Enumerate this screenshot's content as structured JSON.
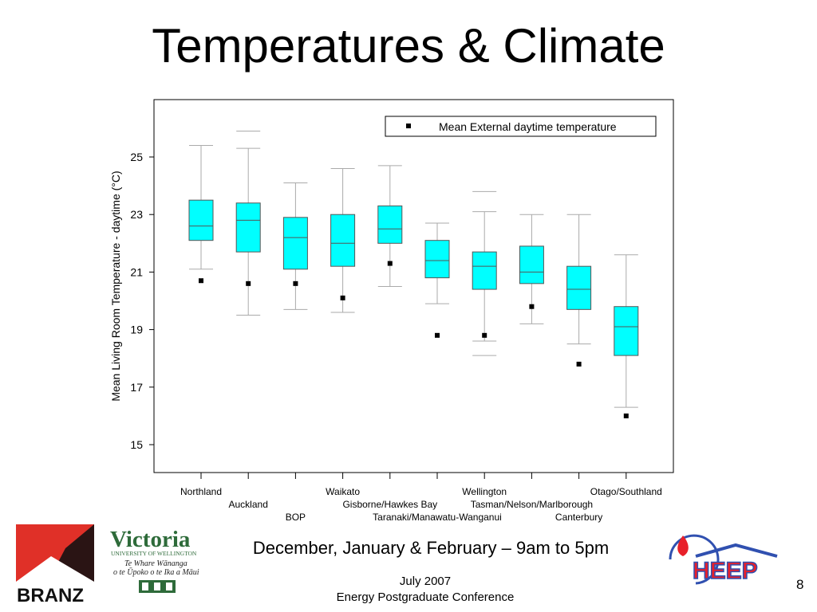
{
  "slide": {
    "title": "Temperatures & Climate",
    "subtitle": "December, January & February – 9am to 5pm",
    "footer_date": "July 2007",
    "footer_event": "Energy Postgraduate Conference",
    "page_number": "8"
  },
  "logos": {
    "branz": "BRANZ",
    "victoria_name": "Victoria",
    "victoria_sub": "UNIVERSITY OF WELLINGTON",
    "victoria_maori_1": "Te Whare Wānanga",
    "victoria_maori_2": "o te Ūpoko o te Ika a Māui",
    "heep": "HEEP"
  },
  "colors": {
    "box_fill": "#00FFFF",
    "box_stroke": "#555555",
    "whisker": "#aaaaaa",
    "marker": "#000000",
    "branz_red": "#e03028",
    "victoria_green": "#2e6b3a",
    "heep_red": "#e8202a",
    "heep_blue": "#3050b0"
  },
  "chart_data": {
    "type": "boxplot",
    "ylabel": "Mean Living Room Temperature - daytime (°C)",
    "ylim": [
      14,
      27
    ],
    "yticks": [
      15,
      17,
      19,
      21,
      23,
      25
    ],
    "legend": {
      "label": "Mean External daytime temperature",
      "position": "top-right"
    },
    "categories": [
      "Northland",
      "Auckland",
      "BOP",
      "Waikato",
      "Gisborne/Hawkes Bay",
      "Taranaki/Manawatu-Wanganui",
      "Wellington",
      "Tasman/Nelson/Marlborough",
      "Canterbury",
      "Otago/Southland"
    ],
    "boxes": [
      {
        "whisker_low": 21.1,
        "q1": 22.1,
        "median": 22.6,
        "q3": 23.5,
        "whisker_high": 25.4,
        "outliers": []
      },
      {
        "whisker_low": 19.5,
        "q1": 21.7,
        "median": 22.8,
        "q3": 23.4,
        "whisker_high": 25.3,
        "outliers": [
          25.9
        ]
      },
      {
        "whisker_low": 19.7,
        "q1": 21.1,
        "median": 22.2,
        "q3": 22.9,
        "whisker_high": 24.1,
        "outliers": []
      },
      {
        "whisker_low": 19.6,
        "q1": 21.2,
        "median": 22.0,
        "q3": 23.0,
        "whisker_high": 24.6,
        "outliers": []
      },
      {
        "whisker_low": 20.5,
        "q1": 22.0,
        "median": 22.5,
        "q3": 23.3,
        "whisker_high": 24.7,
        "outliers": []
      },
      {
        "whisker_low": 19.9,
        "q1": 20.8,
        "median": 21.4,
        "q3": 22.1,
        "whisker_high": 22.7,
        "outliers": []
      },
      {
        "whisker_low": 18.6,
        "q1": 20.4,
        "median": 21.2,
        "q3": 21.7,
        "whisker_high": 23.1,
        "outliers": [
          23.8,
          18.1
        ]
      },
      {
        "whisker_low": 19.2,
        "q1": 20.6,
        "median": 21.0,
        "q3": 21.9,
        "whisker_high": 23.0,
        "outliers": []
      },
      {
        "whisker_low": 18.5,
        "q1": 19.7,
        "median": 20.4,
        "q3": 21.2,
        "whisker_high": 23.0,
        "outliers": []
      },
      {
        "whisker_low": 16.3,
        "q1": 18.1,
        "median": 19.1,
        "q3": 19.8,
        "whisker_high": 21.6,
        "outliers": []
      }
    ],
    "mean_external": [
      20.7,
      20.6,
      20.6,
      20.1,
      21.3,
      18.8,
      18.8,
      19.8,
      17.8,
      16.0
    ]
  }
}
